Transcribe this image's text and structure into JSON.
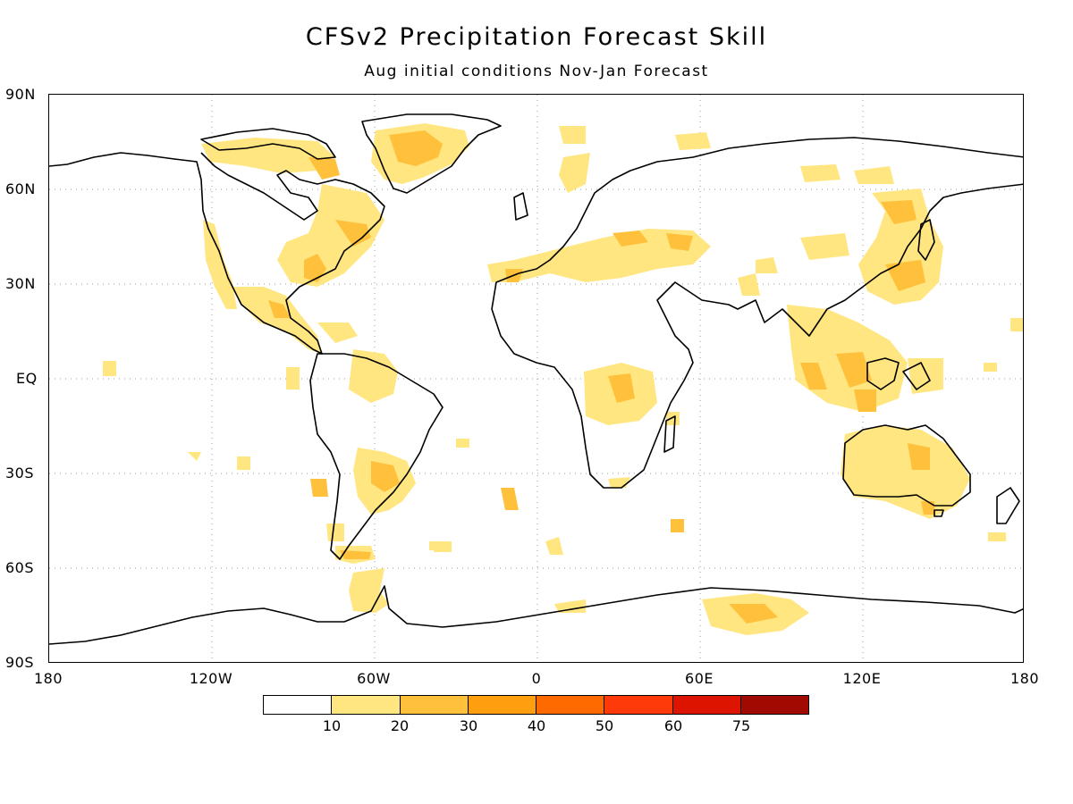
{
  "title": "CFSv2 Precipitation Forecast Skill",
  "subtitle": "Aug initial conditions  Nov-Jan Forecast",
  "axes": {
    "y_ticks": [
      "90N",
      "60N",
      "30N",
      "EQ",
      "30S",
      "60S",
      "90S"
    ],
    "x_ticks": [
      "180",
      "120W",
      "60W",
      "0",
      "60E",
      "120E",
      "180"
    ]
  },
  "colorbar": {
    "colors": [
      "#ffffff",
      "#ffe680",
      "#ffc13b",
      "#ff9f0f",
      "#ff6a00",
      "#ff3a0a",
      "#dd1400",
      "#a00a00"
    ],
    "labels": [
      "10",
      "20",
      "30",
      "40",
      "50",
      "60",
      "75"
    ]
  },
  "skill_colors": {
    "c10": "#ffe680",
    "c20": "#ffc13b",
    "c30": "#ff9f0f"
  }
}
